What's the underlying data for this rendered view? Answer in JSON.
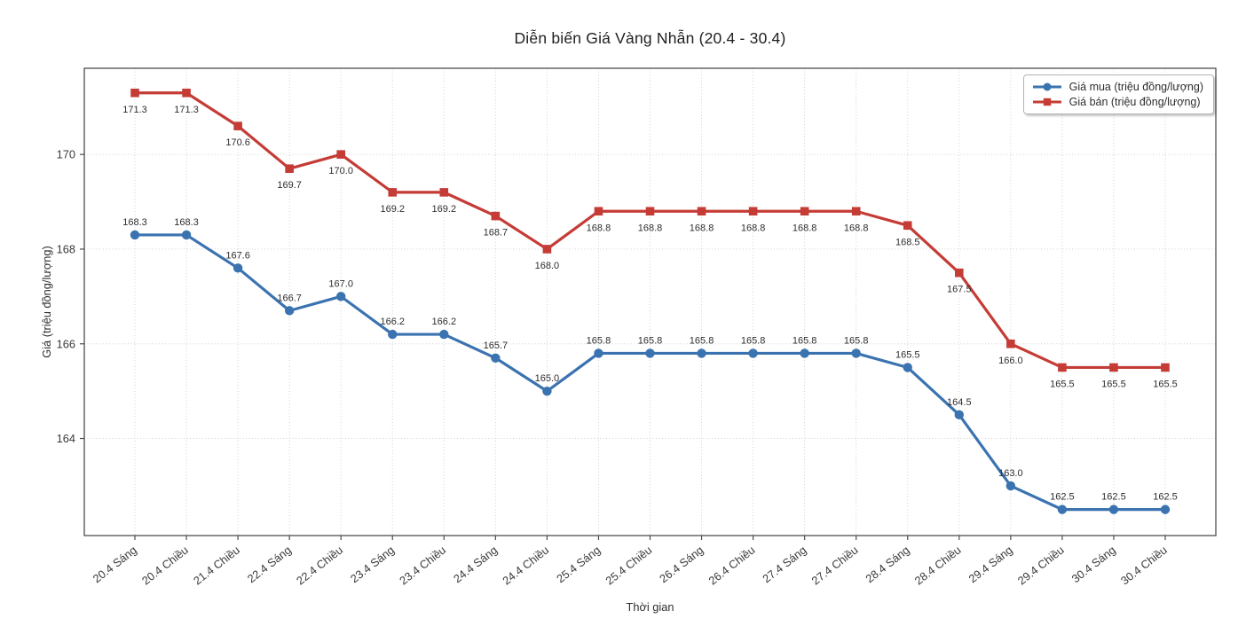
{
  "chart_data": {
    "type": "line",
    "title": "Diễn biến Giá Vàng Nhẫn (20.4 - 30.4)",
    "xlabel": "Thời gian",
    "ylabel": "Giá (triệu đồng/lượng)",
    "categories": [
      "20.4 Sáng",
      "20.4 Chiều",
      "21.4 Chiều",
      "22.4 Sáng",
      "22.4 Chiều",
      "23.4 Sáng",
      "23.4 Chiều",
      "24.4 Sáng",
      "24.4 Chiều",
      "25.4 Sáng",
      "25.4 Chiều",
      "26.4 Sáng",
      "26.4 Chiều",
      "27.4 Sáng",
      "27.4 Chiều",
      "28.4 Sáng",
      "28.4 Chiều",
      "29.4 Sáng",
      "29.4 Chiều",
      "30.4 Sáng",
      "30.4 Chiều"
    ],
    "series": [
      {
        "name": "Giá mua (triệu đồng/lượng)",
        "color": "#3b73b0",
        "marker": "circle",
        "label_position": "above",
        "values": [
          168.3,
          168.3,
          167.6,
          166.7,
          167.0,
          166.2,
          166.2,
          165.7,
          165.0,
          165.8,
          165.8,
          165.8,
          165.8,
          165.8,
          165.8,
          165.5,
          164.5,
          163.0,
          162.5,
          162.5,
          162.5
        ]
      },
      {
        "name": "Giá bán (triệu đồng/lượng)",
        "color": "#c53c36",
        "marker": "square",
        "label_position": "below",
        "values": [
          171.3,
          171.3,
          170.6,
          169.7,
          170.0,
          169.2,
          169.2,
          168.7,
          168.0,
          168.8,
          168.8,
          168.8,
          168.8,
          168.8,
          168.8,
          168.5,
          167.5,
          166.0,
          165.5,
          165.5,
          165.5
        ]
      }
    ],
    "yticks": [
      164,
      166,
      168,
      170
    ],
    "ylim": [
      161.95,
      171.82
    ],
    "grid": true,
    "legend_position": "upper right"
  },
  "colors": {
    "buy_line": "#3b73b0",
    "sell_line": "#c53c36",
    "grid": "#cdcdcd",
    "spine": "#4d4d4d",
    "background": "#ffffff"
  }
}
